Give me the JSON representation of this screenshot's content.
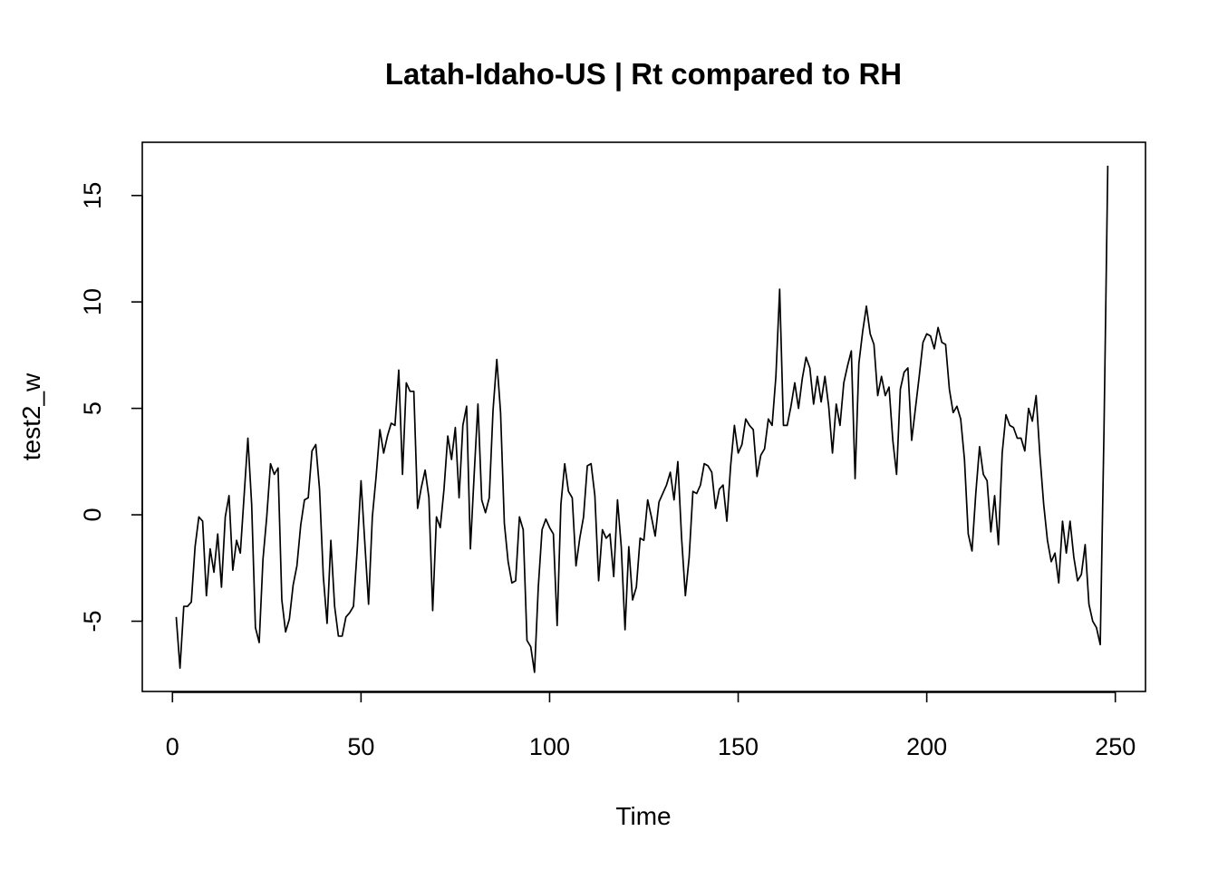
{
  "chart_data": {
    "type": "line",
    "title": "Latah-Idaho-US | Rt compared to RH",
    "xlabel": "Time",
    "ylabel": "test2_w",
    "xlim": [
      -8,
      258
    ],
    "ylim": [
      -8.3,
      17.5
    ],
    "xticks": [
      0,
      50,
      100,
      150,
      200,
      250
    ],
    "yticks": [
      -5,
      0,
      5,
      10,
      15
    ],
    "grid": false,
    "legend": "none",
    "line_color": "#000000",
    "series": [
      {
        "x_start": 1,
        "values": [
          -4.8,
          -7.2,
          -4.3,
          -4.3,
          -4.1,
          -1.5,
          -0.1,
          -0.3,
          -3.8,
          -1.6,
          -2.7,
          -0.9,
          -3.4,
          -0.1,
          0.9,
          -2.6,
          -1.2,
          -1.8,
          0.9,
          3.6,
          0.5,
          -5.3,
          -6.0,
          -2.1,
          -0.1,
          2.4,
          1.9,
          2.2,
          -4.0,
          -5.5,
          -4.9,
          -3.3,
          -2.4,
          -0.5,
          0.7,
          0.8,
          3.0,
          3.3,
          1.2,
          -2.9,
          -5.1,
          -1.2,
          -4.3,
          -5.7,
          -5.7,
          -4.8,
          -4.6,
          -4.3,
          -1.6,
          1.6,
          -1.3,
          -4.2,
          -0.1,
          1.8,
          4.0,
          2.9,
          3.7,
          4.3,
          4.2,
          6.8,
          1.9,
          6.2,
          5.8,
          5.8,
          0.3,
          1.3,
          2.1,
          0.8,
          -4.5,
          -0.1,
          -0.6,
          1.2,
          3.7,
          2.6,
          4.1,
          0.8,
          4.2,
          5.1,
          -1.6,
          1.9,
          5.2,
          0.7,
          0.1,
          0.8,
          4.9,
          7.3,
          4.8,
          -0.4,
          -2.2,
          -3.2,
          -3.1,
          -0.1,
          -0.7,
          -5.9,
          -6.2,
          -7.4,
          -3.4,
          -0.7,
          -0.2,
          -0.6,
          -0.9,
          -5.2,
          0.5,
          2.4,
          1.1,
          0.8,
          -2.4,
          -1.1,
          -0.1,
          2.3,
          2.4,
          0.9,
          -3.1,
          -0.7,
          -1.1,
          -0.9,
          -2.9,
          0.7,
          -1.5,
          -5.4,
          -1.5,
          -4.0,
          -3.4,
          -1.1,
          -1.2,
          0.7,
          -0.1,
          -1.0,
          0.6,
          1.0,
          1.4,
          2.0,
          0.7,
          2.5,
          -1.1,
          -3.8,
          -2.0,
          1.1,
          1.0,
          1.4,
          2.4,
          2.3,
          2.0,
          0.3,
          1.2,
          1.4,
          -0.3,
          2.3,
          4.2,
          2.9,
          3.3,
          4.5,
          4.2,
          4.0,
          1.8,
          2.8,
          3.1,
          4.5,
          4.2,
          6.5,
          10.6,
          4.2,
          4.2,
          5.1,
          6.2,
          5.0,
          6.4,
          7.4,
          6.9,
          5.2,
          6.5,
          5.3,
          6.5,
          5.1,
          2.9,
          5.2,
          4.2,
          6.2,
          7.0,
          7.7,
          1.7,
          7.1,
          8.6,
          9.8,
          8.5,
          8.0,
          5.6,
          6.5,
          5.6,
          6.0,
          3.5,
          1.9,
          5.9,
          6.7,
          6.9,
          3.5,
          5.0,
          6.5,
          8.1,
          8.5,
          8.4,
          7.8,
          8.8,
          8.1,
          8.0,
          5.9,
          4.8,
          5.1,
          4.5,
          2.6,
          -0.9,
          -1.7,
          1.0,
          3.2,
          1.9,
          1.6,
          -0.8,
          0.9,
          -1.4,
          2.9,
          4.7,
          4.2,
          4.1,
          3.6,
          3.6,
          3.0,
          5.0,
          4.4,
          5.6,
          2.8,
          0.5,
          -1.2,
          -2.2,
          -1.8,
          -3.2,
          -0.3,
          -1.8,
          -0.3,
          -2.0,
          -3.1,
          -2.8,
          -1.4,
          -4.2,
          -5.0,
          -5.3,
          -6.1,
          4.0,
          16.4
        ]
      }
    ]
  }
}
